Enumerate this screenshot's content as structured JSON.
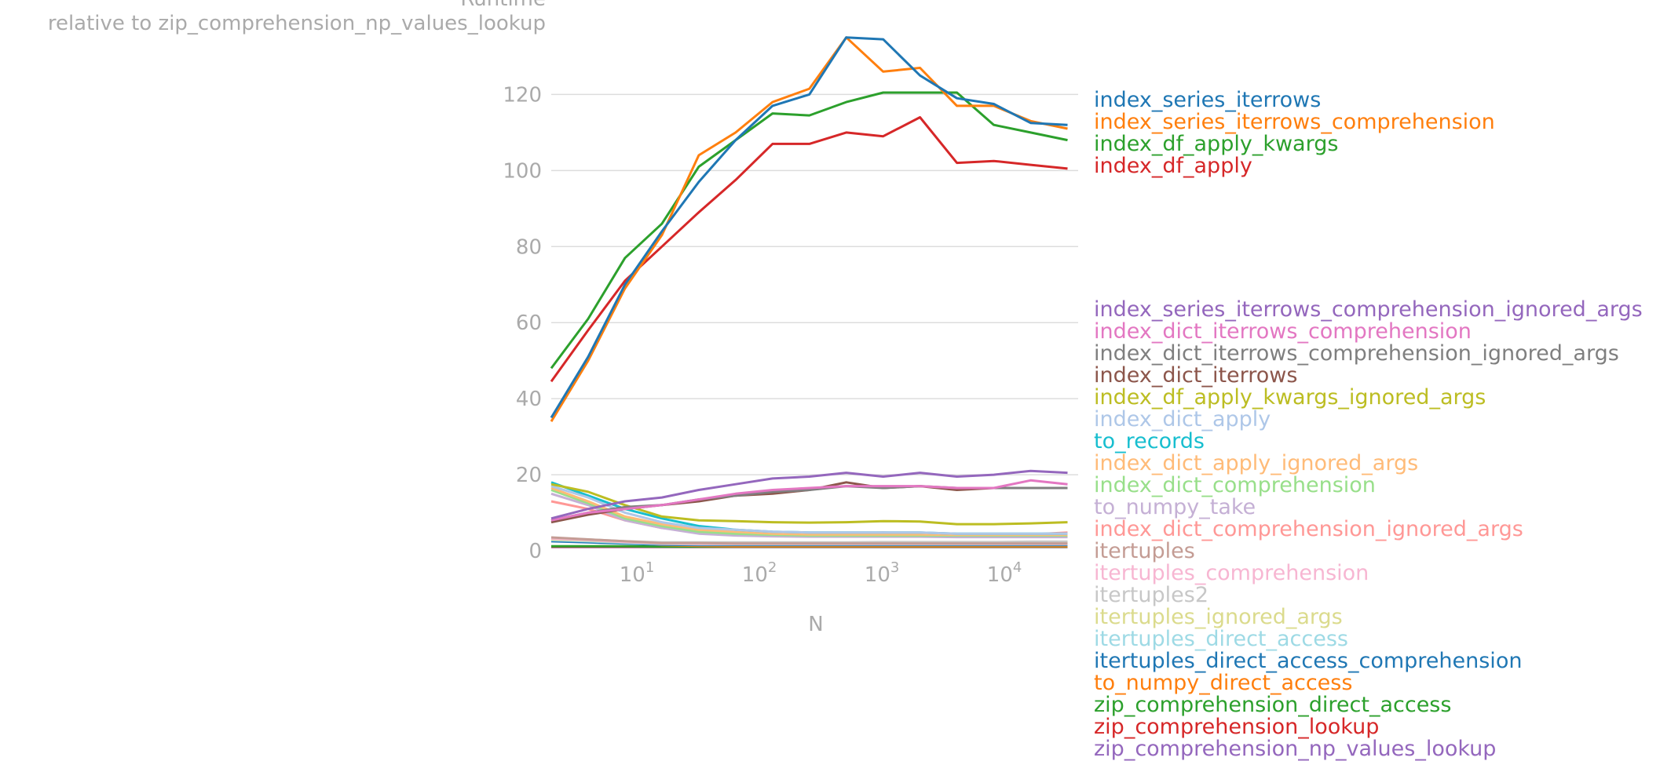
{
  "chart_data": {
    "type": "line",
    "title": "",
    "ylabel": [
      "Runtime",
      "relative to zip_comprehension_np_values_lookup"
    ],
    "xlabel": "N",
    "xscale": "log",
    "xlim": [
      2,
      40000
    ],
    "ylim": [
      0,
      137
    ],
    "yticks": [
      0,
      20,
      40,
      60,
      80,
      100,
      120
    ],
    "xticks": [
      {
        "value": 10,
        "base": "10",
        "exp": "1"
      },
      {
        "value": 100,
        "base": "10",
        "exp": "2"
      },
      {
        "value": 1000,
        "base": "10",
        "exp": "3"
      },
      {
        "value": 10000,
        "base": "10",
        "exp": "4"
      }
    ],
    "grid": "y",
    "legend": "right, labels ordered by final value",
    "x": [
      2,
      4,
      8,
      16,
      32,
      64,
      128,
      256,
      512,
      1024,
      2048,
      4096,
      8192,
      16384,
      32768
    ],
    "series": [
      {
        "name": "index_series_iterrows",
        "color": "#1f77b4",
        "values": [
          35,
          51,
          70,
          84,
          97,
          108,
          117,
          120,
          135,
          134.5,
          125,
          119,
          117.5,
          112.5,
          112
        ]
      },
      {
        "name": "index_series_iterrows_comprehension",
        "color": "#ff7f0e",
        "values": [
          34,
          50,
          69,
          83,
          104,
          110,
          118,
          121.5,
          135,
          126,
          127,
          117,
          117,
          113,
          111
        ]
      },
      {
        "name": "index_df_apply_kwargs",
        "color": "#2ca02c",
        "values": [
          48,
          61,
          77,
          86,
          101,
          108,
          115,
          114.5,
          118,
          120.5,
          120.5,
          120.5,
          112,
          110,
          108
        ]
      },
      {
        "name": "index_df_apply",
        "color": "#d62728",
        "values": [
          44.5,
          58,
          71,
          80,
          89,
          97.5,
          107,
          107,
          110,
          109,
          114,
          102,
          102.5,
          101.5,
          100.5
        ]
      },
      {
        "name": "index_series_iterrows_comprehension_ignored_args",
        "color": "#9467bd",
        "values": [
          8.5,
          11,
          13,
          14,
          16,
          17.5,
          19,
          19.5,
          20.5,
          19.5,
          20.5,
          19.5,
          20,
          21,
          20.5
        ]
      },
      {
        "name": "index_dict_iterrows_comprehension",
        "color": "#e377c2",
        "values": [
          8,
          10,
          11,
          12,
          13.5,
          15,
          16,
          16.5,
          17,
          17,
          17,
          16.5,
          16.5,
          18.5,
          17.5
        ]
      },
      {
        "name": "index_dict_iterrows_comprehension_ignored_args",
        "color": "#7f7f7f",
        "values": [
          8,
          10,
          11.5,
          12,
          13.5,
          14.5,
          15.5,
          16,
          17,
          16.5,
          17,
          16.5,
          16.5,
          16.5,
          16.5
        ]
      },
      {
        "name": "index_dict_iterrows",
        "color": "#8c564b",
        "values": [
          7.5,
          9.5,
          11,
          12,
          13,
          14.5,
          15,
          16,
          18,
          16.5,
          17,
          16,
          16.5,
          16.5,
          16.5
        ]
      },
      {
        "name": "index_df_apply_kwargs_ignored_args",
        "color": "#bcbd22",
        "values": [
          17.5,
          15.5,
          12,
          9,
          8,
          7.8,
          7.5,
          7.4,
          7.5,
          7.8,
          7.7,
          7,
          7,
          7.2,
          7.5
        ]
      },
      {
        "name": "index_dict_apply",
        "color": "#aec7e8",
        "values": [
          17,
          14,
          10,
          7.5,
          6,
          5.5,
          5,
          4.8,
          4.8,
          4.8,
          4.8,
          4.5,
          4.5,
          4.5,
          4.5
        ]
      },
      {
        "name": "to_records",
        "color": "#17becf",
        "values": [
          18,
          14.5,
          11,
          8.5,
          6.5,
          5.5,
          5,
          4.8,
          4.8,
          4.8,
          4.8,
          4.5,
          4.5,
          4.5,
          4.5
        ]
      },
      {
        "name": "index_dict_apply_ignored_args",
        "color": "#ffbb78",
        "values": [
          16.5,
          13,
          9,
          7,
          5.5,
          5,
          4.5,
          4.3,
          4.3,
          4.3,
          4.3,
          4.2,
          4.2,
          4.2,
          4.2
        ]
      },
      {
        "name": "index_dict_comprehension",
        "color": "#98df8a",
        "values": [
          16,
          12.5,
          8.5,
          6.5,
          5,
          4.5,
          4.2,
          4,
          4,
          4,
          4,
          4,
          4,
          4,
          4
        ]
      },
      {
        "name": "to_numpy_take",
        "color": "#c5b0d5",
        "values": [
          15,
          12,
          8,
          6,
          4.5,
          4,
          3.8,
          3.7,
          3.7,
          3.7,
          3.7,
          3.6,
          3.6,
          3.6,
          3.6
        ]
      },
      {
        "name": "index_dict_comprehension_ignored_args",
        "color": "#ff9896",
        "values": [
          13,
          11,
          8,
          6,
          5,
          4.5,
          4.5,
          4.5,
          4.5,
          4.8,
          4.5,
          4.3,
          4.3,
          4.3,
          4.8
        ]
      },
      {
        "name": "itertuples",
        "color": "#c49c94",
        "values": [
          3.5,
          3,
          2.5,
          2,
          2,
          1.9,
          1.9,
          1.9,
          1.9,
          1.9,
          1.9,
          1.9,
          1.9,
          1.9,
          1.9
        ]
      },
      {
        "name": "itertuples_comprehension",
        "color": "#f7b6d2",
        "values": [
          3.2,
          2.8,
          2.3,
          1.9,
          1.8,
          1.8,
          1.8,
          1.8,
          1.8,
          1.8,
          1.8,
          1.8,
          1.8,
          1.8,
          1.8
        ]
      },
      {
        "name": "itertuples2",
        "color": "#c7c7c7",
        "values": [
          3.3,
          3,
          2.5,
          2.2,
          2.2,
          2.2,
          2.2,
          2.2,
          2.2,
          2.3,
          2.3,
          2.3,
          2.3,
          2.4,
          2.4
        ]
      },
      {
        "name": "itertuples_ignored_args",
        "color": "#dbdb8d",
        "values": [
          3,
          2.7,
          2.3,
          2,
          2,
          2,
          2,
          2,
          2,
          2,
          2,
          2,
          2,
          2,
          2
        ]
      },
      {
        "name": "itertuples_direct_access",
        "color": "#9edae5",
        "values": [
          2.8,
          2.5,
          2.1,
          1.8,
          1.7,
          1.7,
          1.7,
          1.7,
          1.7,
          1.7,
          1.7,
          1.7,
          1.7,
          1.7,
          1.7
        ]
      },
      {
        "name": "itertuples_direct_access_comprehension",
        "color": "#1f77b4",
        "values": [
          2.5,
          2.2,
          1.9,
          1.6,
          1.5,
          1.5,
          1.5,
          1.5,
          1.5,
          1.5,
          1.5,
          1.5,
          1.5,
          1.5,
          1.5
        ]
      },
      {
        "name": "to_numpy_direct_access",
        "color": "#ff7f0e",
        "values": [
          3,
          2.7,
          2.2,
          1.5,
          1.3,
          1.2,
          1.2,
          1.2,
          1.2,
          1.2,
          1.2,
          1.2,
          1.2,
          1.2,
          1.2
        ]
      },
      {
        "name": "zip_comprehension_direct_access",
        "color": "#2ca02c",
        "values": [
          1.2,
          1.2,
          1.2,
          1.1,
          1.1,
          1.1,
          1.1,
          1.1,
          1.1,
          1.1,
          1.1,
          1.1,
          1.1,
          1.1,
          1.1
        ]
      },
      {
        "name": "zip_comprehension_lookup",
        "color": "#d62728",
        "values": [
          1.1,
          1.1,
          1.1,
          1.05,
          1.05,
          1.05,
          1.05,
          1.05,
          1.05,
          1.05,
          1.05,
          1.05,
          1.05,
          1.05,
          1.05
        ]
      },
      {
        "name": "zip_comprehension_np_values_lookup",
        "color": "#9467bd",
        "values": [
          1,
          1,
          1,
          1,
          1,
          1,
          1,
          1,
          1,
          1,
          1,
          1,
          1,
          1,
          1
        ]
      }
    ]
  }
}
